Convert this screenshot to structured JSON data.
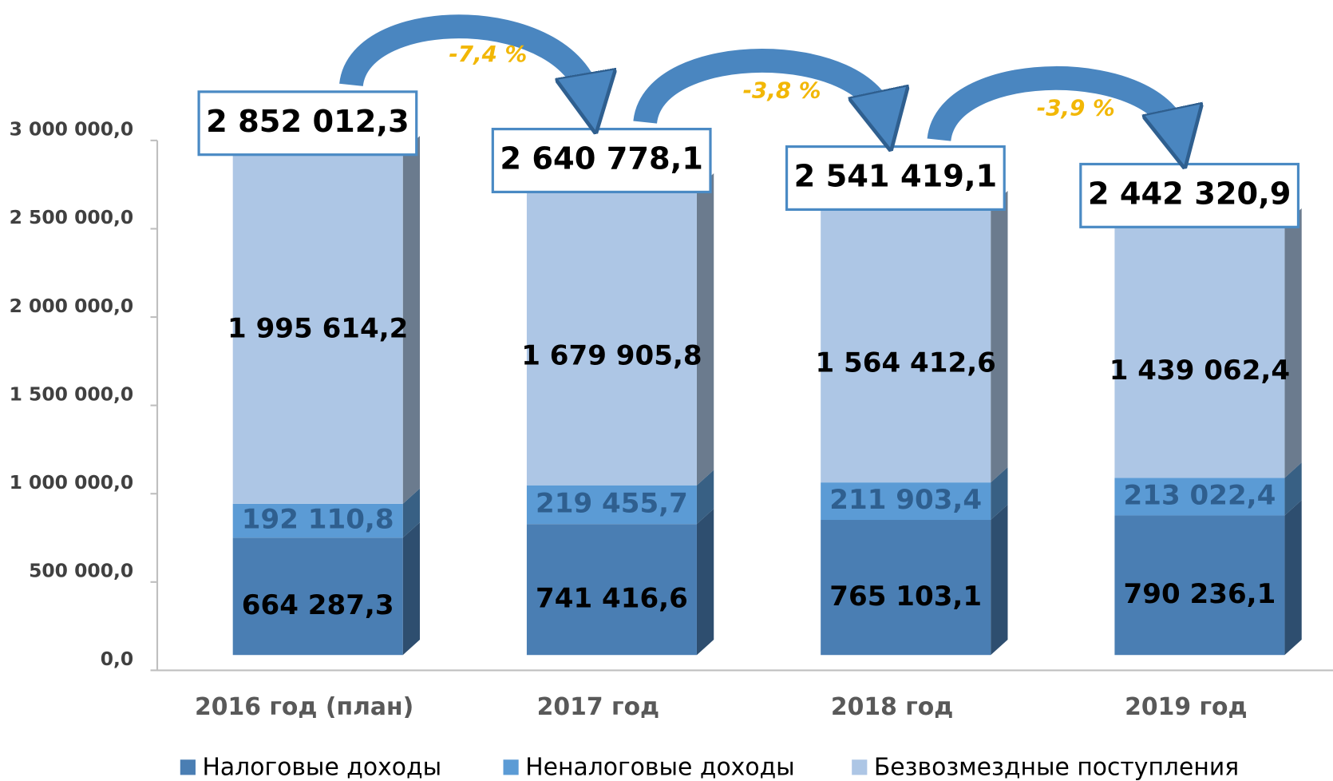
{
  "chart_data": {
    "type": "bar",
    "stacked": true,
    "categories": [
      "2016 год (план)",
      "2017 год",
      "2018 год",
      "2019 год"
    ],
    "series": [
      {
        "name": "Налоговые доходы",
        "color": "#4a7eb3",
        "values": [
          664287.3,
          741416.6,
          765103.1,
          790236.1
        ],
        "value_labels": [
          "664 287,3",
          "741 416,6",
          "765 103,1",
          "790 236,1"
        ]
      },
      {
        "name": "Неналоговые доходы",
        "color": "#5b9bd5",
        "values": [
          192110.8,
          219455.7,
          211903.4,
          213022.4
        ],
        "value_labels": [
          "192 110,8",
          "219 455,7",
          "211 903,4",
          "213 022,4"
        ]
      },
      {
        "name": "Безвозмездные поступления",
        "color": "#adc6e5",
        "values": [
          1995614.2,
          1679905.8,
          1564412.6,
          1439062.4
        ],
        "value_labels": [
          "1 995 614,2",
          "1 679 905,8",
          "1 564 412,6",
          "1 439 062,4"
        ]
      }
    ],
    "totals": [
      2852012.3,
      2640778.1,
      2541419.1,
      2442320.9
    ],
    "total_labels": [
      "2 852 012,3",
      "2 640 778,1",
      "2 541 419,1",
      "2 442 320,9"
    ],
    "annotations": [
      "-7,4 %",
      "-3,8 %",
      "-3,9 %"
    ],
    "ylim": [
      0,
      3000000
    ],
    "yticks": [
      {
        "value": 0,
        "label": "0,0"
      },
      {
        "value": 500000,
        "label": "500 000,0"
      },
      {
        "value": 1000000,
        "label": "1 000 000,0"
      },
      {
        "value": 1500000,
        "label": "1 500 000,0"
      },
      {
        "value": 2000000,
        "label": "2 000 000,0"
      },
      {
        "value": 2500000,
        "label": "2 500 000,0"
      },
      {
        "value": 3000000,
        "label": "3 000 000,0"
      }
    ],
    "legend": "bottom"
  }
}
